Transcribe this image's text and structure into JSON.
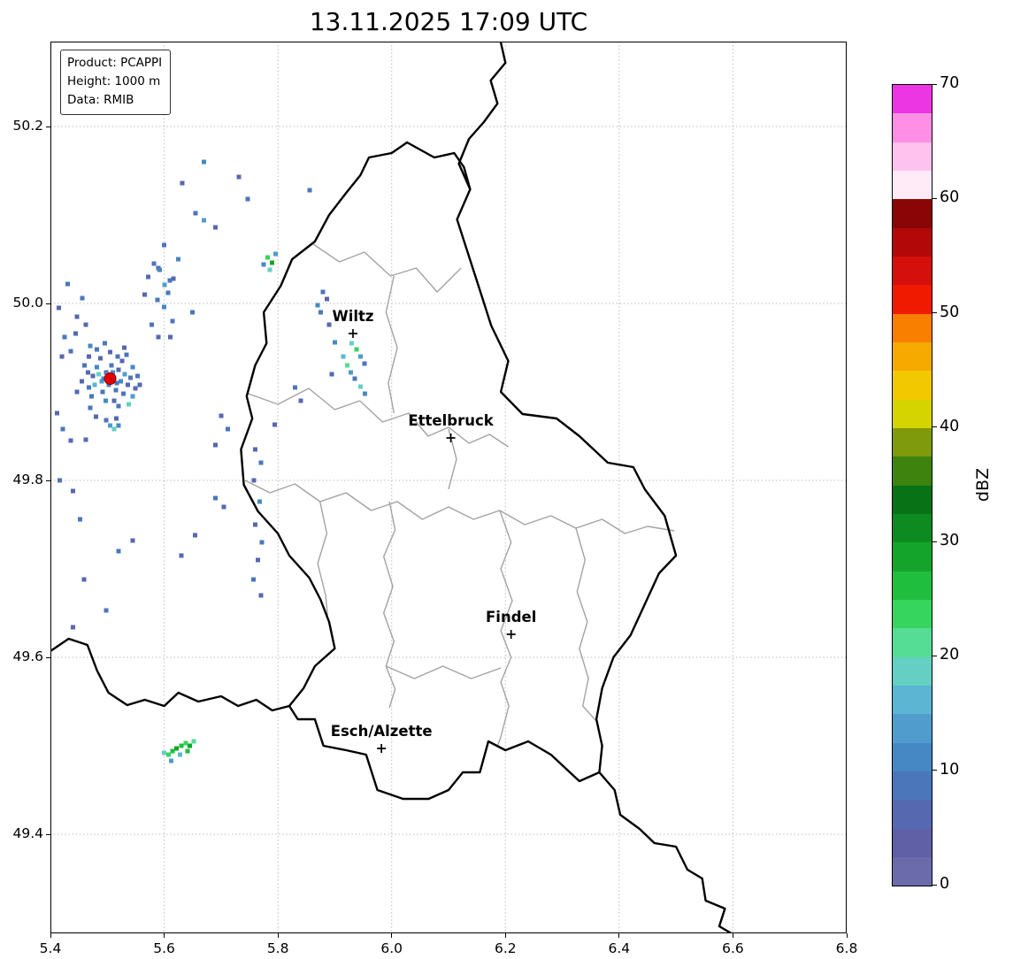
{
  "title": "13.11.2025 17:09 UTC",
  "info_box": {
    "lines": [
      "Product: PCAPPI",
      "Height: 1000 m",
      "Data: RMIB"
    ]
  },
  "axes": {
    "x_range": [
      5.4,
      6.8
    ],
    "y_range": [
      49.288,
      50.296
    ],
    "x_ticks": [
      5.4,
      5.6,
      5.8,
      6.0,
      6.2,
      6.4,
      6.6,
      6.8
    ],
    "x_tick_labels": [
      "5.4",
      "5.6",
      "5.8",
      "6.0",
      "6.2",
      "6.4",
      "6.6",
      "6.8"
    ],
    "y_ticks": [
      49.4,
      49.6,
      49.8,
      50.0,
      50.2
    ],
    "y_tick_labels": [
      "49.4",
      "49.6",
      "49.8",
      "50.0",
      "50.2"
    ],
    "grid": "dotted"
  },
  "colorbar": {
    "label": "dBZ",
    "vmin": 0,
    "vmax": 70,
    "step": 2.5,
    "ticks": [
      0,
      10,
      20,
      30,
      40,
      50,
      60,
      70
    ],
    "colors": [
      "#6b6bab",
      "#6060a6",
      "#5568b0",
      "#4b76ba",
      "#4688c4",
      "#4f9ccd",
      "#5cb5d2",
      "#65cfc3",
      "#55dd96",
      "#35d55e",
      "#1fbe3e",
      "#14a42c",
      "#0d8a20",
      "#087216",
      "#3d830e",
      "#7f9a0a",
      "#d6d400",
      "#f2c800",
      "#f6aa00",
      "#f87f00",
      "#ef1a00",
      "#d40f0c",
      "#b30808",
      "#8a0505",
      "#ffeaf8",
      "#ffc2ee",
      "#ff8fe5",
      "#ec35e3"
    ]
  },
  "map": {
    "cities": [
      {
        "name": "Wiltz",
        "lon": 5.932,
        "lat": 49.966
      },
      {
        "name": "Ettelbruck",
        "lon": 6.104,
        "lat": 49.848
      },
      {
        "name": "Findel",
        "lon": 6.21,
        "lat": 49.626
      },
      {
        "name": "Esch/Alzette",
        "lon": 5.982,
        "lat": 49.497
      }
    ],
    "radar_site": {
      "lon": 5.505,
      "lat": 49.915,
      "color": "#e00000"
    },
    "country_borders": [
      [
        [
          6.027,
          50.182
        ],
        [
          6.075,
          50.165
        ],
        [
          6.11,
          50.17
        ],
        [
          6.127,
          50.154
        ],
        [
          6.138,
          50.129
        ],
        [
          6.115,
          50.095
        ],
        [
          6.135,
          50.055
        ],
        [
          6.155,
          50.015
        ],
        [
          6.175,
          49.975
        ],
        [
          6.205,
          49.935
        ],
        [
          6.192,
          49.9
        ],
        [
          6.23,
          49.875
        ],
        [
          6.29,
          49.87
        ],
        [
          6.33,
          49.85
        ],
        [
          6.38,
          49.82
        ],
        [
          6.425,
          49.815
        ],
        [
          6.445,
          49.79
        ],
        [
          6.48,
          49.76
        ],
        [
          6.5,
          49.715
        ],
        [
          6.47,
          49.695
        ],
        [
          6.445,
          49.66
        ],
        [
          6.42,
          49.625
        ],
        [
          6.39,
          49.6
        ],
        [
          6.37,
          49.565
        ],
        [
          6.36,
          49.53
        ],
        [
          6.37,
          49.5
        ],
        [
          6.365,
          49.47
        ],
        [
          6.33,
          49.46
        ],
        [
          6.28,
          49.49
        ],
        [
          6.24,
          49.505
        ],
        [
          6.2,
          49.495
        ],
        [
          6.17,
          49.505
        ],
        [
          6.155,
          49.47
        ],
        [
          6.125,
          49.47
        ],
        [
          6.1,
          49.45
        ],
        [
          6.065,
          49.44
        ],
        [
          6.02,
          49.44
        ],
        [
          5.975,
          49.45
        ],
        [
          5.955,
          49.49
        ],
        [
          5.92,
          49.495
        ],
        [
          5.88,
          49.5
        ],
        [
          5.865,
          49.53
        ],
        [
          5.835,
          49.53
        ],
        [
          5.82,
          49.545
        ],
        [
          5.845,
          49.565
        ],
        [
          5.865,
          49.59
        ],
        [
          5.9,
          49.61
        ],
        [
          5.89,
          49.64
        ],
        [
          5.875,
          49.665
        ],
        [
          5.855,
          49.69
        ],
        [
          5.82,
          49.715
        ],
        [
          5.8,
          49.74
        ],
        [
          5.765,
          49.765
        ],
        [
          5.74,
          49.795
        ],
        [
          5.735,
          49.835
        ],
        [
          5.755,
          49.87
        ],
        [
          5.745,
          49.895
        ],
        [
          5.76,
          49.93
        ],
        [
          5.78,
          49.955
        ],
        [
          5.775,
          49.99
        ],
        [
          5.805,
          50.02
        ],
        [
          5.825,
          50.05
        ],
        [
          5.865,
          50.07
        ],
        [
          5.89,
          50.1
        ],
        [
          5.92,
          50.125
        ],
        [
          5.945,
          50.145
        ],
        [
          5.96,
          50.165
        ],
        [
          6.0,
          50.17
        ],
        [
          6.027,
          50.182
        ]
      ],
      [
        [
          6.138,
          50.129
        ],
        [
          6.118,
          50.158
        ],
        [
          6.136,
          50.186
        ],
        [
          6.162,
          50.205
        ],
        [
          6.186,
          50.226
        ],
        [
          6.174,
          50.252
        ],
        [
          6.2,
          50.272
        ],
        [
          6.19,
          50.3
        ]
      ],
      [
        [
          5.4,
          49.607
        ],
        [
          5.432,
          49.621
        ],
        [
          5.465,
          49.614
        ],
        [
          5.482,
          49.585
        ],
        [
          5.502,
          49.56
        ],
        [
          5.535,
          49.546
        ],
        [
          5.566,
          49.552
        ],
        [
          5.6,
          49.545
        ],
        [
          5.625,
          49.56
        ],
        [
          5.66,
          49.55
        ],
        [
          5.7,
          49.556
        ],
        [
          5.73,
          49.545
        ],
        [
          5.762,
          49.552
        ],
        [
          5.79,
          49.54
        ],
        [
          5.82,
          49.545
        ]
      ],
      [
        [
          6.365,
          49.47
        ],
        [
          6.392,
          49.45
        ],
        [
          6.402,
          49.422
        ],
        [
          6.436,
          49.406
        ],
        [
          6.462,
          49.39
        ],
        [
          6.5,
          49.386
        ],
        [
          6.52,
          49.36
        ],
        [
          6.546,
          49.35
        ],
        [
          6.552,
          49.325
        ],
        [
          6.586,
          49.316
        ],
        [
          6.576,
          49.296
        ],
        [
          6.605,
          49.285
        ]
      ]
    ],
    "district_borders": [
      [
        [
          5.86,
          50.068
        ],
        [
          5.908,
          50.047
        ],
        [
          5.952,
          50.058
        ],
        [
          5.998,
          50.031
        ],
        [
          6.043,
          50.04
        ],
        [
          6.08,
          50.013
        ],
        [
          6.122,
          50.04
        ]
      ],
      [
        [
          5.748,
          49.898
        ],
        [
          5.8,
          49.886
        ],
        [
          5.854,
          49.904
        ],
        [
          5.9,
          49.88
        ],
        [
          5.944,
          49.89
        ],
        [
          5.984,
          49.866
        ],
        [
          6.03,
          49.876
        ],
        [
          6.064,
          49.85
        ],
        [
          6.1,
          49.86
        ],
        [
          6.136,
          49.842
        ],
        [
          6.172,
          49.852
        ],
        [
          6.205,
          49.838
        ]
      ],
      [
        [
          5.742,
          49.8
        ],
        [
          5.786,
          49.786
        ],
        [
          5.83,
          49.796
        ],
        [
          5.874,
          49.776
        ],
        [
          5.92,
          49.786
        ],
        [
          5.964,
          49.766
        ],
        [
          6.01,
          49.776
        ],
        [
          6.054,
          49.756
        ],
        [
          6.1,
          49.77
        ],
        [
          6.144,
          49.756
        ],
        [
          6.19,
          49.766
        ],
        [
          6.234,
          49.75
        ],
        [
          6.28,
          49.76
        ],
        [
          6.324,
          49.746
        ],
        [
          6.37,
          49.756
        ],
        [
          6.41,
          49.74
        ],
        [
          6.45,
          49.748
        ],
        [
          6.497,
          49.743
        ]
      ],
      [
        [
          5.996,
          49.776
        ],
        [
          6.006,
          49.744
        ],
        [
          5.986,
          49.714
        ],
        [
          6.002,
          49.68
        ],
        [
          5.986,
          49.65
        ],
        [
          6.004,
          49.618
        ],
        [
          5.99,
          49.59
        ],
        [
          6.006,
          49.564
        ],
        [
          5.996,
          49.543
        ]
      ],
      [
        [
          6.19,
          49.766
        ],
        [
          6.21,
          49.73
        ],
        [
          6.192,
          49.7
        ],
        [
          6.212,
          49.664
        ],
        [
          6.192,
          49.63
        ],
        [
          6.21,
          49.6
        ],
        [
          6.192,
          49.572
        ],
        [
          6.206,
          49.545
        ],
        [
          6.192,
          49.51
        ],
        [
          6.186,
          49.5
        ]
      ],
      [
        [
          6.324,
          49.746
        ],
        [
          6.34,
          49.71
        ],
        [
          6.326,
          49.674
        ],
        [
          6.344,
          49.64
        ],
        [
          6.33,
          49.61
        ],
        [
          6.346,
          49.576
        ],
        [
          6.336,
          49.545
        ],
        [
          6.36,
          49.528
        ]
      ],
      [
        [
          6.004,
          50.031
        ],
        [
          5.99,
          49.99
        ],
        [
          6.01,
          49.95
        ],
        [
          5.994,
          49.91
        ],
        [
          6.004,
          49.876
        ]
      ],
      [
        [
          6.1,
          49.858
        ],
        [
          6.114,
          49.824
        ],
        [
          6.1,
          49.79
        ]
      ],
      [
        [
          5.99,
          49.59
        ],
        [
          6.04,
          49.576
        ],
        [
          6.09,
          49.59
        ],
        [
          6.14,
          49.576
        ],
        [
          6.192,
          49.588
        ]
      ],
      [
        [
          5.874,
          49.776
        ],
        [
          5.886,
          49.74
        ],
        [
          5.87,
          49.706
        ],
        [
          5.884,
          49.67
        ],
        [
          5.888,
          49.642
        ]
      ]
    ]
  },
  "echoes": [
    [
      5.468,
      49.905,
      7.5
    ],
    [
      5.475,
      49.918,
      5
    ],
    [
      5.482,
      49.928,
      10
    ],
    [
      5.49,
      49.912,
      12.5
    ],
    [
      5.492,
      49.9,
      7.5
    ],
    [
      5.498,
      49.922,
      5
    ],
    [
      5.503,
      49.908,
      10
    ],
    [
      5.507,
      49.93,
      7.5
    ],
    [
      5.512,
      49.916,
      15
    ],
    [
      5.515,
      49.902,
      7.5
    ],
    [
      5.52,
      49.925,
      5
    ],
    [
      5.524,
      49.912,
      10
    ],
    [
      5.528,
      49.898,
      7.5
    ],
    [
      5.531,
      49.92,
      12.5
    ],
    [
      5.536,
      49.908,
      5
    ],
    [
      5.541,
      49.916,
      7.5
    ],
    [
      5.545,
      49.928,
      10
    ],
    [
      5.549,
      49.904,
      5
    ],
    [
      5.466,
      49.922,
      5
    ],
    [
      5.472,
      49.895,
      7.5
    ],
    [
      5.488,
      49.938,
      5
    ],
    [
      5.497,
      49.89,
      10
    ],
    [
      5.505,
      49.945,
      5
    ],
    [
      5.518,
      49.94,
      7.5
    ],
    [
      5.526,
      49.935,
      5
    ],
    [
      5.534,
      49.942,
      7.5
    ],
    [
      5.512,
      49.89,
      5
    ],
    [
      5.52,
      49.884,
      7.5
    ],
    [
      5.478,
      49.908,
      15
    ],
    [
      5.485,
      49.92,
      17.5
    ],
    [
      5.493,
      49.915,
      10
    ],
    [
      5.5,
      49.92,
      12.5
    ],
    [
      5.51,
      49.922,
      10
    ],
    [
      5.517,
      49.91,
      7.5
    ],
    [
      5.455,
      49.912,
      5
    ],
    [
      5.46,
      49.93,
      7.5
    ],
    [
      5.447,
      49.9,
      5
    ],
    [
      5.553,
      49.918,
      7.5
    ],
    [
      5.557,
      49.908,
      5
    ],
    [
      5.545,
      49.895,
      12.5
    ],
    [
      5.538,
      49.886,
      17.5
    ],
    [
      5.468,
      49.94,
      5
    ],
    [
      5.482,
      49.948,
      7.5
    ],
    [
      5.53,
      49.95,
      5
    ],
    [
      5.496,
      49.955,
      7.5
    ],
    [
      5.505,
      49.862,
      12.5
    ],
    [
      5.512,
      49.858,
      17.5
    ],
    [
      5.52,
      49.862,
      10
    ],
    [
      5.498,
      49.868,
      7.5
    ],
    [
      5.516,
      49.87,
      5
    ],
    [
      5.415,
      49.995,
      5
    ],
    [
      5.425,
      49.962,
      7.5
    ],
    [
      5.42,
      49.94,
      5
    ],
    [
      5.436,
      49.946,
      7.5
    ],
    [
      5.444,
      49.966,
      5
    ],
    [
      5.43,
      50.022,
      7.5
    ],
    [
      5.447,
      49.985,
      5
    ],
    [
      5.412,
      49.876,
      5
    ],
    [
      5.422,
      49.858,
      7.5
    ],
    [
      5.436,
      49.845,
      5
    ],
    [
      5.416,
      49.8,
      7.5
    ],
    [
      5.44,
      49.788,
      5
    ],
    [
      5.452,
      49.756,
      7.5
    ],
    [
      5.47,
      49.952,
      10
    ],
    [
      5.462,
      49.976,
      5
    ],
    [
      5.456,
      50.006,
      7.5
    ],
    [
      5.48,
      49.872,
      5
    ],
    [
      5.47,
      49.882,
      7.5
    ],
    [
      5.462,
      49.846,
      5
    ],
    [
      5.459,
      49.688,
      5
    ],
    [
      5.498,
      49.653,
      7.5
    ],
    [
      5.44,
      49.634,
      5
    ],
    [
      5.52,
      49.72,
      7.5
    ],
    [
      5.545,
      49.732,
      5
    ],
    [
      5.67,
      50.16,
      10
    ],
    [
      5.632,
      50.136,
      5
    ],
    [
      5.655,
      50.102,
      7.5
    ],
    [
      5.67,
      50.094,
      12.5
    ],
    [
      5.69,
      50.086,
      5
    ],
    [
      5.6,
      50.066,
      7.5
    ],
    [
      5.625,
      50.05,
      10
    ],
    [
      5.59,
      50.04,
      5
    ],
    [
      5.61,
      50.026,
      7.5
    ],
    [
      5.566,
      50.01,
      5
    ],
    [
      5.6,
      49.996,
      10
    ],
    [
      5.615,
      49.98,
      7.5
    ],
    [
      5.59,
      49.962,
      5
    ],
    [
      5.65,
      49.99,
      7.5
    ],
    [
      5.582,
      50.045,
      7.5
    ],
    [
      5.592,
      50.038,
      10
    ],
    [
      5.601,
      50.021,
      12.5
    ],
    [
      5.607,
      50.012,
      7.5
    ],
    [
      5.616,
      50.028,
      5
    ],
    [
      5.588,
      50.004,
      7.5
    ],
    [
      5.572,
      50.03,
      5
    ],
    [
      5.578,
      49.976,
      7.5
    ],
    [
      5.611,
      49.962,
      5
    ],
    [
      5.731,
      50.143,
      5
    ],
    [
      5.747,
      50.118,
      7.5
    ],
    [
      5.856,
      50.128,
      7.5
    ],
    [
      5.782,
      50.052,
      22.5
    ],
    [
      5.79,
      50.046,
      27.5
    ],
    [
      5.786,
      50.038,
      17.5
    ],
    [
      5.796,
      50.056,
      12.5
    ],
    [
      5.775,
      50.044,
      10
    ],
    [
      5.879,
      50.013,
      7.5
    ],
    [
      5.886,
      50.005,
      5
    ],
    [
      5.87,
      49.998,
      10
    ],
    [
      5.875,
      49.99,
      7.5
    ],
    [
      5.89,
      49.976,
      5
    ],
    [
      5.9,
      49.956,
      10
    ],
    [
      5.93,
      49.955,
      17.5
    ],
    [
      5.938,
      49.948,
      22.5
    ],
    [
      5.945,
      49.94,
      12.5
    ],
    [
      5.952,
      49.932,
      7.5
    ],
    [
      5.915,
      49.94,
      15
    ],
    [
      5.922,
      49.93,
      20
    ],
    [
      5.928,
      49.922,
      12.5
    ],
    [
      5.935,
      49.915,
      7.5
    ],
    [
      5.895,
      49.92,
      5
    ],
    [
      5.945,
      49.906,
      17.5
    ],
    [
      5.953,
      49.898,
      10
    ],
    [
      5.76,
      49.835,
      5
    ],
    [
      5.77,
      49.82,
      7.5
    ],
    [
      5.758,
      49.8,
      5
    ],
    [
      5.768,
      49.776,
      10
    ],
    [
      5.76,
      49.75,
      5
    ],
    [
      5.772,
      49.73,
      7.5
    ],
    [
      5.765,
      49.71,
      5
    ],
    [
      5.757,
      49.688,
      7.5
    ],
    [
      5.77,
      49.67,
      5
    ],
    [
      5.7,
      49.873,
      5
    ],
    [
      5.712,
      49.858,
      7.5
    ],
    [
      5.69,
      49.84,
      5
    ],
    [
      5.69,
      49.78,
      7.5
    ],
    [
      5.705,
      49.77,
      5
    ],
    [
      5.654,
      49.738,
      5
    ],
    [
      5.63,
      49.715,
      5
    ],
    [
      5.83,
      49.905,
      7.5
    ],
    [
      5.84,
      49.89,
      5
    ],
    [
      5.794,
      49.863,
      5
    ],
    [
      5.6,
      49.492,
      17.5
    ],
    [
      5.608,
      49.49,
      22.5
    ],
    [
      5.615,
      49.494,
      25
    ],
    [
      5.622,
      49.497,
      27.5
    ],
    [
      5.63,
      49.5,
      25
    ],
    [
      5.638,
      49.503,
      22.5
    ],
    [
      5.645,
      49.5,
      27.5
    ],
    [
      5.652,
      49.505,
      20
    ],
    [
      5.612,
      49.483,
      12.5
    ],
    [
      5.628,
      49.49,
      15
    ],
    [
      5.641,
      49.494,
      25
    ]
  ]
}
